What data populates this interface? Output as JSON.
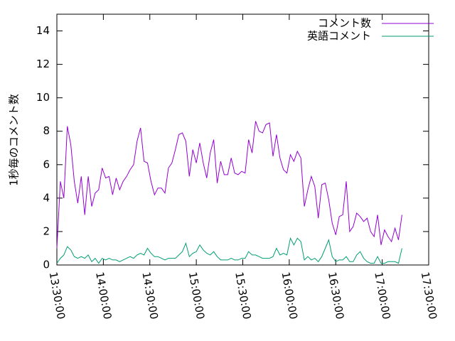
{
  "chart_data": {
    "type": "line",
    "ylabel": "1秒毎のコメント数",
    "x": [
      "13:30:00",
      "13:32:15",
      "13:34:30",
      "13:36:45",
      "13:39:00",
      "13:41:15",
      "13:43:30",
      "13:45:45",
      "13:48:00",
      "13:50:15",
      "13:52:30",
      "13:54:45",
      "13:57:00",
      "13:59:15",
      "14:01:30",
      "14:03:45",
      "14:06:00",
      "14:08:15",
      "14:10:30",
      "14:12:45",
      "14:15:00",
      "14:17:15",
      "14:19:30",
      "14:21:45",
      "14:24:00",
      "14:26:15",
      "14:28:30",
      "14:30:45",
      "14:33:00",
      "14:35:15",
      "14:37:30",
      "14:39:45",
      "14:42:00",
      "14:44:15",
      "14:46:30",
      "14:48:45",
      "14:51:00",
      "14:53:15",
      "14:55:30",
      "14:57:45",
      "15:00:00",
      "15:02:15",
      "15:04:30",
      "15:06:45",
      "15:09:00",
      "15:11:15",
      "15:13:30",
      "15:15:45",
      "15:18:00",
      "15:20:15",
      "15:22:30",
      "15:24:45",
      "15:27:00",
      "15:29:15",
      "15:31:30",
      "15:33:45",
      "15:36:00",
      "15:38:15",
      "15:40:30",
      "15:42:45",
      "15:45:00",
      "15:47:15",
      "15:49:30",
      "15:51:45",
      "15:54:00",
      "15:56:15",
      "15:58:30",
      "16:00:45",
      "16:03:00",
      "16:05:15",
      "16:07:30",
      "16:09:45",
      "16:12:00",
      "16:14:15",
      "16:16:30",
      "16:18:45",
      "16:21:00",
      "16:23:15",
      "16:25:30",
      "16:27:45",
      "16:30:00",
      "16:32:15",
      "16:34:30",
      "16:36:45",
      "16:39:00",
      "16:41:15",
      "16:43:30",
      "16:45:45",
      "16:48:00",
      "16:50:15",
      "16:52:30",
      "16:54:45",
      "16:57:00",
      "16:59:15",
      "17:01:30",
      "17:03:45",
      "17:06:00",
      "17:08:15",
      "17:10:30",
      "17:12:45"
    ],
    "series": [
      {
        "name": "コメント数",
        "color": "#9400d3",
        "values": [
          1.0,
          5.0,
          4.0,
          8.3,
          7.2,
          5.0,
          3.7,
          5.3,
          3.0,
          5.3,
          3.5,
          4.3,
          4.5,
          5.8,
          5.2,
          5.3,
          4.2,
          5.2,
          4.5,
          5.0,
          5.3,
          5.7,
          6.0,
          7.4,
          8.2,
          6.2,
          6.1,
          5.0,
          4.2,
          4.6,
          4.6,
          4.3,
          5.8,
          6.1,
          6.9,
          7.8,
          7.9,
          7.4,
          5.3,
          6.9,
          6.1,
          7.3,
          6.1,
          5.2,
          6.7,
          7.5,
          4.9,
          6.2,
          5.4,
          5.4,
          6.4,
          5.5,
          5.4,
          5.6,
          5.5,
          7.5,
          6.7,
          8.6,
          8.0,
          7.9,
          8.4,
          8.5,
          6.5,
          7.8,
          6.4,
          5.7,
          5.5,
          6.6,
          6.2,
          6.8,
          6.4,
          3.5,
          4.5,
          5.3,
          4.7,
          2.8,
          4.8,
          4.9,
          3.9,
          2.5,
          1.8,
          2.9,
          3.0,
          5.0,
          2.0,
          2.3,
          3.1,
          2.9,
          2.6,
          2.8,
          2.0,
          1.7,
          3.0,
          1.2,
          2.1,
          1.7,
          1.4,
          2.2,
          1.5,
          3.0
        ]
      },
      {
        "name": "英語コメント",
        "color": "#009e73",
        "values": [
          0.1,
          0.4,
          0.6,
          1.1,
          0.9,
          0.5,
          0.4,
          0.5,
          0.4,
          0.6,
          0.2,
          0.4,
          0.1,
          0.4,
          0.3,
          0.4,
          0.3,
          0.3,
          0.2,
          0.3,
          0.4,
          0.5,
          0.4,
          0.6,
          0.7,
          0.6,
          1.0,
          0.7,
          0.5,
          0.5,
          0.4,
          0.3,
          0.4,
          0.4,
          0.4,
          0.6,
          0.8,
          1.3,
          0.5,
          0.7,
          0.8,
          1.2,
          0.9,
          0.7,
          0.6,
          0.8,
          0.5,
          0.3,
          0.3,
          0.3,
          0.4,
          0.3,
          0.3,
          0.4,
          0.4,
          0.8,
          0.6,
          0.6,
          0.5,
          0.4,
          0.4,
          0.4,
          0.5,
          1.0,
          0.6,
          0.7,
          0.6,
          1.6,
          1.2,
          1.6,
          1.4,
          0.3,
          0.5,
          0.3,
          0.4,
          0.2,
          0.5,
          1.0,
          1.5,
          0.5,
          0.2,
          0.3,
          0.3,
          0.5,
          0.2,
          0.2,
          0.6,
          0.8,
          0.4,
          0.2,
          0.1,
          0.1,
          0.5,
          0.1,
          0.1,
          0.2,
          0.2,
          0.2,
          0.1,
          1.0
        ]
      }
    ],
    "xlim": [
      "13:30:00",
      "17:30:00"
    ],
    "xticks": [
      "13:30:00",
      "14:00:00",
      "14:30:00",
      "15:00:00",
      "15:30:00",
      "16:00:00",
      "16:30:00",
      "17:00:00",
      "17:30:00"
    ],
    "ylim": [
      0,
      15
    ],
    "yticks": [
      0,
      2,
      4,
      6,
      8,
      10,
      12,
      14
    ],
    "legend": "upper right"
  }
}
